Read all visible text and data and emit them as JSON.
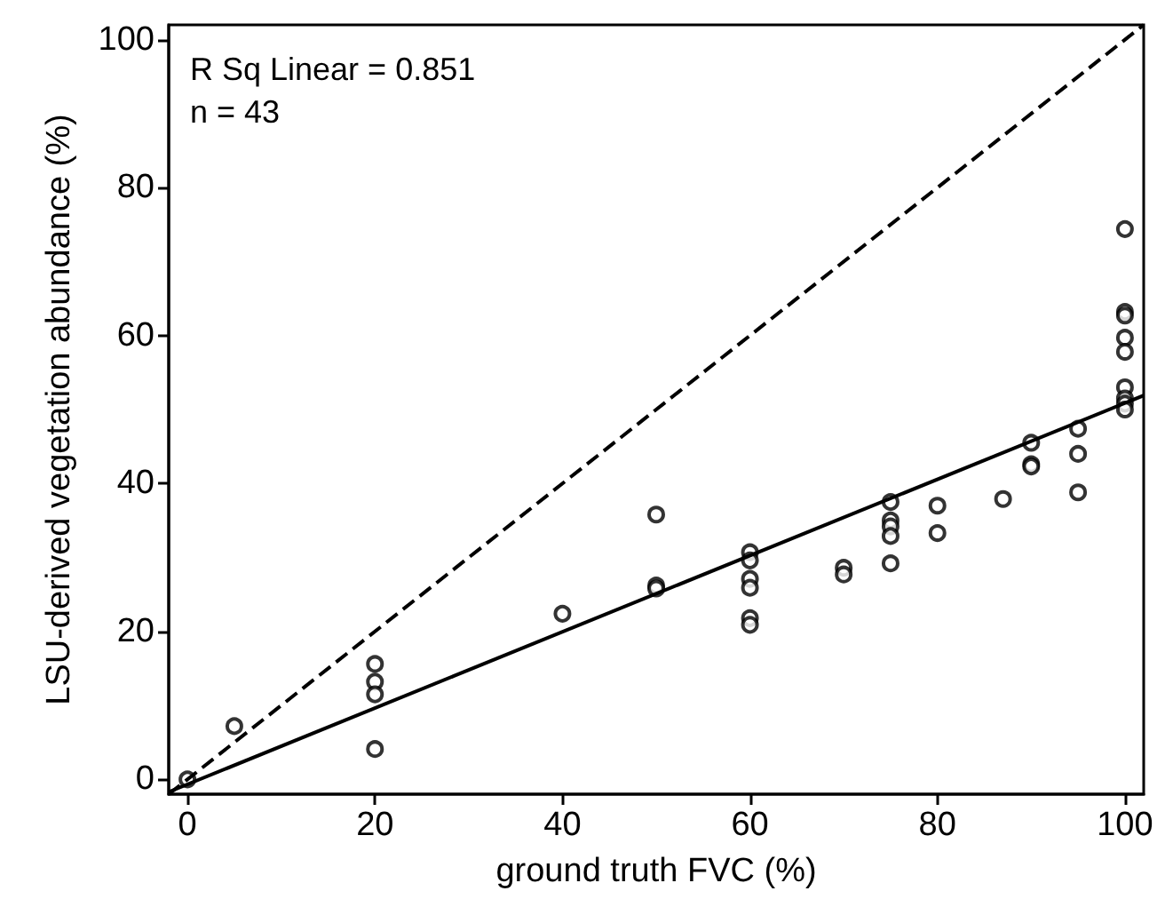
{
  "chart_data": {
    "type": "scatter",
    "xlabel": "ground truth FVC (%)",
    "ylabel": "LSU-derived vegetation abundance (%)",
    "annotations": [
      "R Sq Linear = 0.851",
      "n = 43"
    ],
    "xlim": [
      -2,
      102
    ],
    "ylim": [
      -2,
      102
    ],
    "xticks": [
      0,
      20,
      40,
      60,
      80,
      100
    ],
    "yticks": [
      0,
      20,
      40,
      60,
      80,
      100
    ],
    "grid": false,
    "marker": "circle",
    "series": [
      {
        "type": "scatter",
        "color": "#000000",
        "x": [
          0,
          5,
          20,
          20,
          20,
          20,
          40,
          50,
          50,
          50,
          60,
          60,
          60,
          60,
          60,
          60,
          70,
          70,
          75,
          75,
          75,
          75,
          75,
          80,
          80,
          87,
          90,
          90,
          90,
          95,
          95,
          95,
          100,
          100,
          100,
          100,
          100,
          100,
          100,
          100,
          100
        ],
        "values": [
          0,
          7.2,
          15.6,
          13.2,
          11.5,
          4.1,
          22.4,
          35.8,
          26.2,
          25.8,
          30.7,
          29.6,
          27.1,
          25.9,
          21.8,
          20.9,
          28.6,
          27.7,
          37.5,
          35,
          34.2,
          32.9,
          29.2,
          37,
          33.3,
          37.9,
          45.5,
          42.6,
          42.3,
          47.4,
          44,
          38.8,
          74.4,
          63.2,
          62.7,
          59.7,
          57.8,
          53,
          51.5,
          50.8,
          50
        ]
      },
      {
        "type": "line",
        "color": "#000000",
        "line_style": "solid",
        "marker": "none",
        "x": [
          -2,
          102
        ],
        "values": [
          -1.7,
          51.9
        ]
      },
      {
        "type": "line",
        "color": "#000000",
        "line_style": "dashed",
        "marker": "none",
        "x": [
          -2,
          102
        ],
        "values": [
          -2,
          102
        ]
      }
    ]
  }
}
